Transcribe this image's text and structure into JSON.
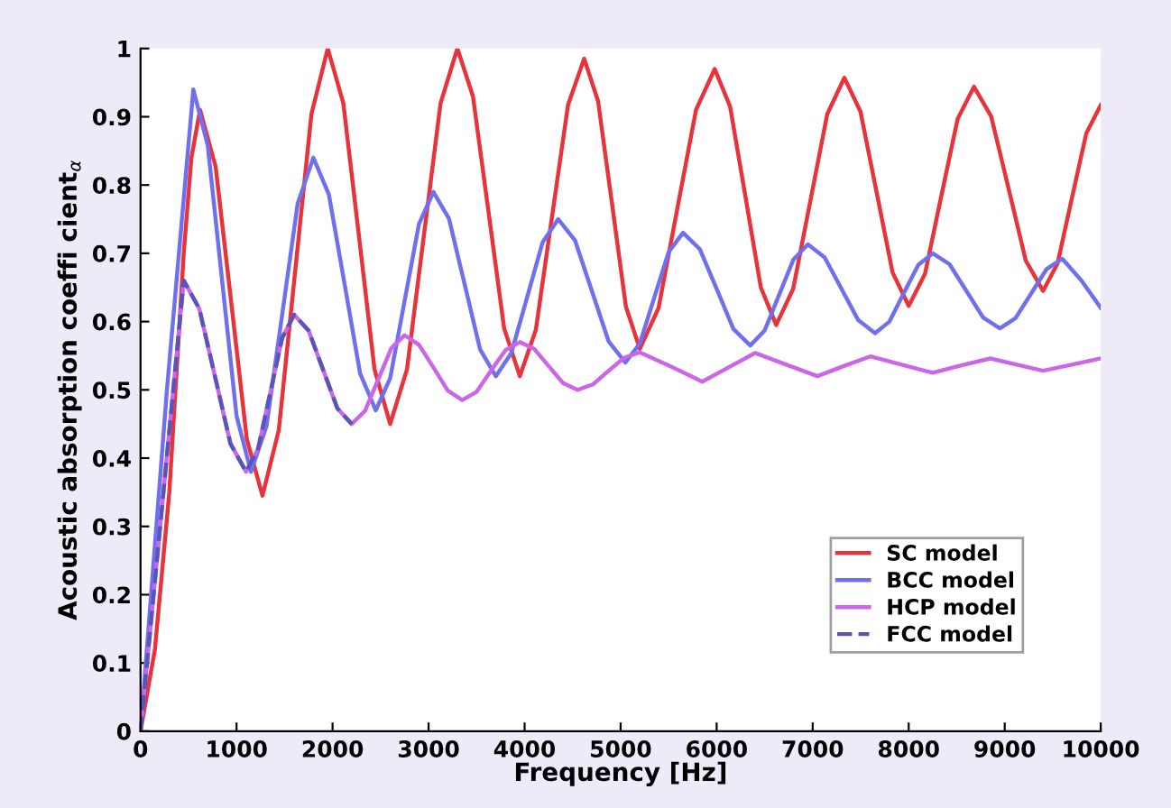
{
  "chart_data": {
    "type": "line",
    "xlabel": "Frequency [Hz]",
    "ylabel": "Acoustic absorption coeffi cient$_{α}$",
    "xlim": [
      0,
      10000
    ],
    "ylim": [
      0,
      1
    ],
    "xticks": [
      0,
      1000,
      2000,
      3000,
      4000,
      5000,
      6000,
      7000,
      8000,
      9000,
      10000
    ],
    "yticks": [
      0,
      0.1,
      0.2,
      0.3,
      0.4,
      0.5,
      0.6,
      0.7,
      0.8,
      0.9,
      1
    ],
    "grid": false,
    "legend": "bottom right",
    "marker": "none",
    "series": [
      {
        "name": "SC model",
        "color": "#e8333a",
        "line_style": "solid",
        "x": [
          0,
          150,
          300,
          450,
          530,
          620,
          782,
          945,
          1107,
          1270,
          1440,
          1610,
          1780,
          1950,
          2112,
          2275,
          2437,
          2600,
          2775,
          2950,
          3125,
          3300,
          3462,
          3625,
          3787,
          3950,
          4117,
          4285,
          4452,
          4620,
          4765,
          4910,
          5055,
          5200,
          5395,
          5590,
          5785,
          5980,
          6140,
          6300,
          6460,
          6620,
          6797,
          6975,
          7152,
          7330,
          7497,
          7665,
          7832,
          8000,
          8170,
          8340,
          8510,
          8680,
          8860,
          9040,
          9220,
          9400,
          9550,
          9700,
          9850,
          10000
        ],
        "values": [
          0,
          0.12,
          0.35,
          0.7,
          0.84,
          0.91,
          0.827,
          0.628,
          0.428,
          0.345,
          0.441,
          0.673,
          0.904,
          1.0,
          0.92,
          0.725,
          0.53,
          0.45,
          0.53,
          0.725,
          0.92,
          1.0,
          0.93,
          0.76,
          0.59,
          0.52,
          0.588,
          0.753,
          0.917,
          0.985,
          0.923,
          0.773,
          0.622,
          0.56,
          0.62,
          0.765,
          0.91,
          0.97,
          0.915,
          0.783,
          0.65,
          0.595,
          0.648,
          0.776,
          0.904,
          0.957,
          0.908,
          0.79,
          0.672,
          0.623,
          0.67,
          0.784,
          0.897,
          0.944,
          0.9,
          0.795,
          0.689,
          0.645,
          0.685,
          0.781,
          0.876,
          0.917
        ]
      },
      {
        "name": "BCC model",
        "color": "#7070ee",
        "line_style": "solid",
        "x": [
          0,
          275,
          550,
          700,
          850,
          1000,
          1150,
          1312,
          1475,
          1637,
          1800,
          1962,
          2125,
          2287,
          2450,
          2600,
          2750,
          2900,
          3050,
          3212,
          3375,
          3537,
          3700,
          3862,
          4025,
          4187,
          4350,
          4525,
          4700,
          4875,
          5050,
          5200,
          5350,
          5500,
          5650,
          5825,
          6000,
          6175,
          6350,
          6500,
          6650,
          6800,
          6950,
          7125,
          7300,
          7475,
          7650,
          7800,
          7950,
          8100,
          8250,
          8425,
          8600,
          8775,
          8950,
          9112,
          9275,
          9437,
          9600,
          9800,
          10000
        ],
        "values": [
          0,
          0.5,
          0.94,
          0.858,
          0.66,
          0.462,
          0.38,
          0.447,
          0.61,
          0.773,
          0.84,
          0.786,
          0.655,
          0.524,
          0.47,
          0.517,
          0.63,
          0.743,
          0.79,
          0.751,
          0.655,
          0.559,
          0.52,
          0.554,
          0.635,
          0.716,
          0.75,
          0.719,
          0.645,
          0.571,
          0.54,
          0.568,
          0.635,
          0.702,
          0.73,
          0.706,
          0.648,
          0.589,
          0.565,
          0.587,
          0.639,
          0.691,
          0.713,
          0.694,
          0.648,
          0.602,
          0.583,
          0.6,
          0.642,
          0.683,
          0.7,
          0.684,
          0.645,
          0.606,
          0.59,
          0.605,
          0.641,
          0.677,
          0.692,
          0.66,
          0.62
        ]
      },
      {
        "name": "HCP model",
        "color": "#cc66e8",
        "line_style": "solid",
        "x": [
          0,
          225,
          450,
          612,
          775,
          937,
          1100,
          1225,
          1350,
          1475,
          1600,
          1750,
          1900,
          2050,
          2200,
          2337,
          2475,
          2612,
          2750,
          2900,
          3050,
          3200,
          3350,
          3500,
          3650,
          3800,
          3950,
          4100,
          4250,
          4400,
          4550,
          4712,
          4875,
          5037,
          5200,
          5525,
          5850,
          6125,
          6400,
          6725,
          7050,
          7325,
          7600,
          7925,
          8250,
          8550,
          8850,
          9125,
          9400,
          9700,
          10000
        ],
        "values": [
          0,
          0.33,
          0.66,
          0.619,
          0.52,
          0.421,
          0.38,
          0.414,
          0.495,
          0.576,
          0.61,
          0.587,
          0.53,
          0.473,
          0.45,
          0.469,
          0.515,
          0.561,
          0.58,
          0.566,
          0.533,
          0.499,
          0.485,
          0.497,
          0.528,
          0.558,
          0.57,
          0.56,
          0.535,
          0.51,
          0.5,
          0.508,
          0.528,
          0.547,
          0.555,
          0.534,
          0.512,
          0.533,
          0.554,
          0.537,
          0.52,
          0.535,
          0.549,
          0.537,
          0.525,
          0.536,
          0.546,
          0.537,
          0.528,
          0.537,
          0.546
        ]
      },
      {
        "name": "FCC model",
        "color": "#5555bb",
        "line_style": "dashed",
        "x": [
          0,
          225,
          450,
          612,
          775,
          937,
          1100,
          1225,
          1350,
          1475,
          1600,
          1750,
          1900,
          2050,
          2200
        ],
        "values": [
          0,
          0.33,
          0.66,
          0.619,
          0.52,
          0.421,
          0.38,
          0.414,
          0.495,
          0.576,
          0.61,
          0.587,
          0.53,
          0.473,
          0.45
        ]
      }
    ]
  }
}
